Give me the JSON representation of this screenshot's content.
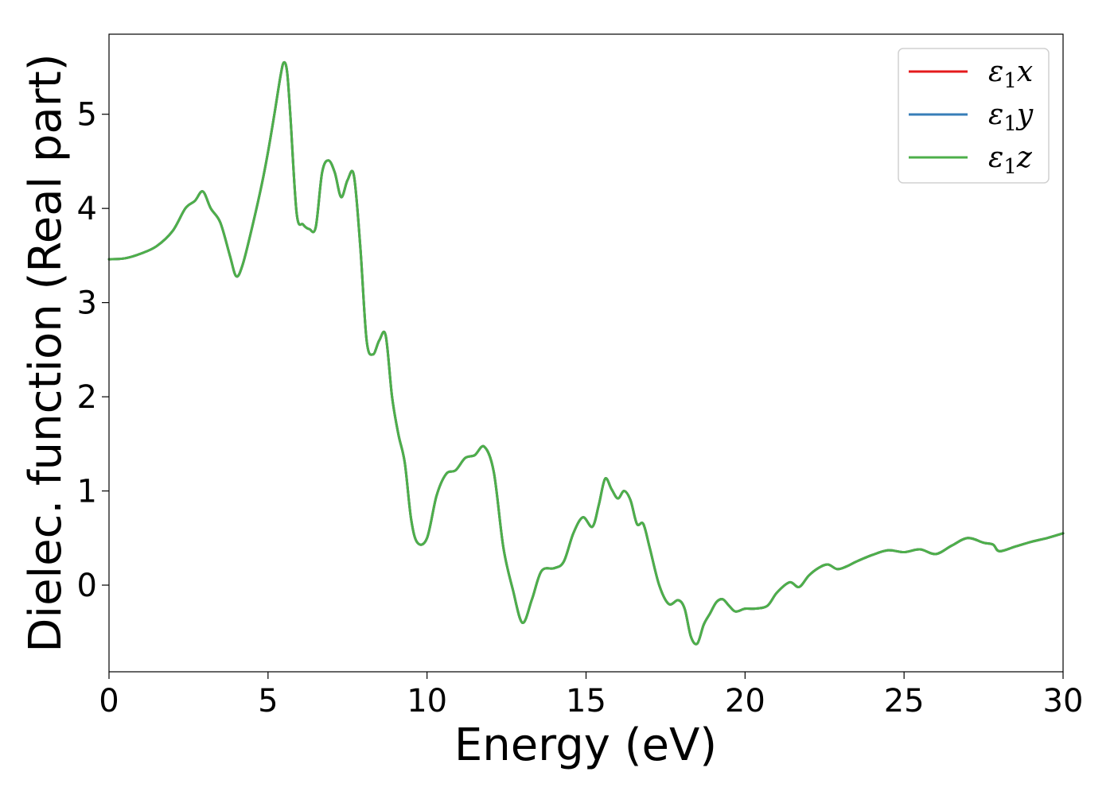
{
  "chart_data": {
    "type": "line",
    "title": "",
    "xlabel": "Energy (eV)",
    "ylabel": "Dielec. function (Real part)",
    "xlim": [
      0,
      30
    ],
    "ylim": [
      -0.92,
      5.85
    ],
    "xticks": [
      0,
      5,
      10,
      15,
      20,
      25,
      30
    ],
    "yticks": [
      0,
      1,
      2,
      3,
      4,
      5
    ],
    "grid": false,
    "legend_position": "top-right",
    "colors": {
      "x": "#e41a1c",
      "y": "#377eb8",
      "z": "#4daf4a"
    },
    "x": [
      0,
      0.5,
      1.0,
      1.5,
      2.0,
      2.4,
      2.7,
      2.95,
      3.2,
      3.5,
      3.8,
      4.0,
      4.2,
      4.5,
      4.8,
      5.0,
      5.2,
      5.4,
      5.5,
      5.6,
      5.7,
      5.9,
      6.1,
      6.3,
      6.5,
      6.7,
      6.9,
      7.1,
      7.3,
      7.5,
      7.7,
      7.9,
      8.1,
      8.3,
      8.5,
      8.7,
      8.9,
      9.1,
      9.3,
      9.5,
      9.7,
      10.0,
      10.3,
      10.6,
      10.9,
      11.2,
      11.5,
      11.8,
      12.1,
      12.4,
      12.7,
      13.0,
      13.3,
      13.6,
      14.0,
      14.3,
      14.6,
      14.9,
      15.2,
      15.4,
      15.6,
      15.8,
      16.0,
      16.2,
      16.4,
      16.6,
      16.8,
      17.0,
      17.3,
      17.6,
      17.9,
      18.1,
      18.3,
      18.5,
      18.7,
      18.9,
      19.1,
      19.3,
      19.5,
      19.7,
      20.0,
      20.3,
      20.7,
      21.0,
      21.4,
      21.7,
      22.0,
      22.3,
      22.6,
      22.9,
      23.2,
      23.5,
      24.0,
      24.5,
      25.0,
      25.5,
      26.0,
      26.5,
      27.0,
      27.5,
      27.8,
      28.0,
      28.5,
      29.0,
      29.5,
      30.0
    ],
    "series": [
      {
        "name": "ε1x",
        "label_base": "ε",
        "label_sub": "1",
        "label_comp": "x",
        "values": [
          3.46,
          3.47,
          3.52,
          3.6,
          3.76,
          4.0,
          4.08,
          4.18,
          4.0,
          3.85,
          3.5,
          3.28,
          3.4,
          3.8,
          4.25,
          4.6,
          5.0,
          5.42,
          5.55,
          5.45,
          5.0,
          3.95,
          3.83,
          3.78,
          3.8,
          4.38,
          4.51,
          4.38,
          4.12,
          4.3,
          4.35,
          3.6,
          2.6,
          2.45,
          2.6,
          2.65,
          2.0,
          1.6,
          1.3,
          0.7,
          0.45,
          0.5,
          0.95,
          1.18,
          1.22,
          1.35,
          1.38,
          1.47,
          1.2,
          0.4,
          -0.05,
          -0.4,
          -0.15,
          0.15,
          0.18,
          0.25,
          0.55,
          0.72,
          0.62,
          0.85,
          1.13,
          1.02,
          0.92,
          1.0,
          0.9,
          0.65,
          0.65,
          0.4,
          0.0,
          -0.2,
          -0.16,
          -0.25,
          -0.55,
          -0.62,
          -0.42,
          -0.3,
          -0.18,
          -0.15,
          -0.22,
          -0.28,
          -0.25,
          -0.25,
          -0.22,
          -0.08,
          0.03,
          -0.02,
          0.1,
          0.18,
          0.22,
          0.17,
          0.2,
          0.25,
          0.32,
          0.37,
          0.35,
          0.38,
          0.33,
          0.42,
          0.5,
          0.45,
          0.43,
          0.36,
          0.41,
          0.46,
          0.5,
          0.55
        ]
      },
      {
        "name": "ε1y",
        "label_base": "ε",
        "label_sub": "1",
        "label_comp": "y",
        "values": [
          3.46,
          3.47,
          3.52,
          3.6,
          3.76,
          4.0,
          4.08,
          4.18,
          4.0,
          3.85,
          3.5,
          3.28,
          3.4,
          3.8,
          4.25,
          4.6,
          5.0,
          5.42,
          5.55,
          5.45,
          5.0,
          3.95,
          3.83,
          3.78,
          3.8,
          4.38,
          4.51,
          4.38,
          4.12,
          4.3,
          4.35,
          3.6,
          2.6,
          2.45,
          2.6,
          2.65,
          2.0,
          1.6,
          1.3,
          0.7,
          0.45,
          0.5,
          0.95,
          1.18,
          1.22,
          1.35,
          1.38,
          1.47,
          1.2,
          0.4,
          -0.05,
          -0.4,
          -0.15,
          0.15,
          0.18,
          0.25,
          0.55,
          0.72,
          0.62,
          0.85,
          1.13,
          1.02,
          0.92,
          1.0,
          0.9,
          0.65,
          0.65,
          0.4,
          0.0,
          -0.2,
          -0.16,
          -0.25,
          -0.55,
          -0.62,
          -0.42,
          -0.3,
          -0.18,
          -0.15,
          -0.22,
          -0.28,
          -0.25,
          -0.25,
          -0.22,
          -0.08,
          0.03,
          -0.02,
          0.1,
          0.18,
          0.22,
          0.17,
          0.2,
          0.25,
          0.32,
          0.37,
          0.35,
          0.38,
          0.33,
          0.42,
          0.5,
          0.45,
          0.43,
          0.36,
          0.41,
          0.46,
          0.5,
          0.55
        ]
      },
      {
        "name": "ε1z",
        "label_base": "ε",
        "label_sub": "1",
        "label_comp": "z",
        "values": [
          3.46,
          3.47,
          3.52,
          3.6,
          3.76,
          4.0,
          4.08,
          4.18,
          4.0,
          3.85,
          3.5,
          3.28,
          3.4,
          3.8,
          4.25,
          4.6,
          5.0,
          5.42,
          5.55,
          5.45,
          5.0,
          3.95,
          3.83,
          3.78,
          3.8,
          4.38,
          4.51,
          4.38,
          4.12,
          4.3,
          4.35,
          3.6,
          2.6,
          2.45,
          2.6,
          2.65,
          2.0,
          1.6,
          1.3,
          0.7,
          0.45,
          0.5,
          0.95,
          1.18,
          1.22,
          1.35,
          1.38,
          1.47,
          1.2,
          0.4,
          -0.05,
          -0.4,
          -0.15,
          0.15,
          0.18,
          0.25,
          0.55,
          0.72,
          0.62,
          0.85,
          1.13,
          1.02,
          0.92,
          1.0,
          0.9,
          0.65,
          0.65,
          0.4,
          0.0,
          -0.2,
          -0.16,
          -0.25,
          -0.55,
          -0.62,
          -0.42,
          -0.3,
          -0.18,
          -0.15,
          -0.22,
          -0.28,
          -0.25,
          -0.25,
          -0.22,
          -0.08,
          0.03,
          -0.02,
          0.1,
          0.18,
          0.22,
          0.17,
          0.2,
          0.25,
          0.32,
          0.37,
          0.35,
          0.38,
          0.33,
          0.42,
          0.5,
          0.45,
          0.43,
          0.36,
          0.41,
          0.46,
          0.5,
          0.55
        ]
      }
    ]
  }
}
